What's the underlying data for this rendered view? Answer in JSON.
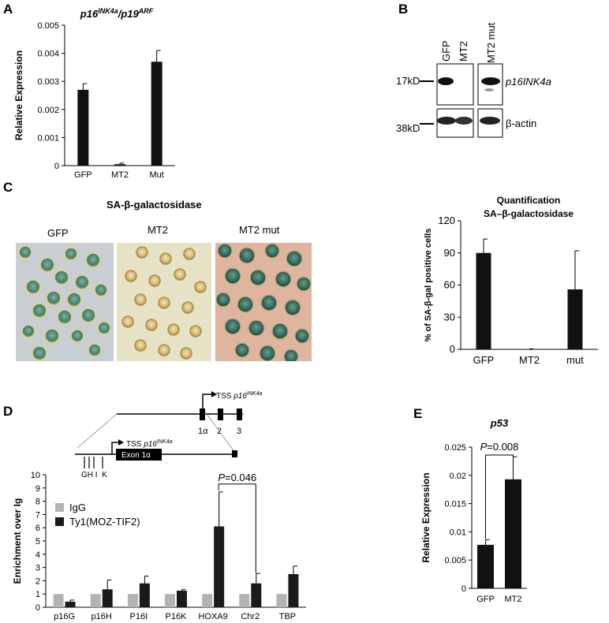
{
  "panel_letters": {
    "a": "A",
    "b": "B",
    "c": "C",
    "d": "D",
    "e": "E"
  },
  "blot": {
    "lanes": [
      "GFP",
      "MT2",
      "MT2 mut"
    ],
    "markers": [
      "17kD",
      "38kD"
    ],
    "bands": [
      "p16INK4a",
      "β-actin"
    ]
  },
  "micrographs": {
    "title": "SA-β-galactosidase",
    "labels": [
      "GFP",
      "MT2",
      "MT2 mut"
    ]
  },
  "schematic": {
    "tss_top": "TSS ",
    "tss_top_gene": "p16",
    "tss_top_sup": "INK4a",
    "tss_bottom": "TSS ",
    "tss_bottom_gene": "p16",
    "tss_bottom_sup": "INK4a",
    "exon": "Exon 1α",
    "exon_labels": [
      "1α",
      "2",
      "3"
    ],
    "probes": "GH I  K"
  },
  "chart_data": [
    {
      "id": "A",
      "type": "bar",
      "title_main": "p16",
      "title_sup1": "INK4a",
      "title_mid": "/p19",
      "title_sup2": "ARF",
      "ylabel": "Relative Expression",
      "categories": [
        "GFP",
        "MT2",
        "Mut"
      ],
      "values": [
        0.0027,
        5e-05,
        0.0037
      ],
      "errors": [
        0.00022,
        4e-05,
        0.0004
      ],
      "ylim": [
        0,
        0.005
      ],
      "yticks": [
        "0",
        "0.001",
        "0.002",
        "0.003",
        "0.004",
        "0.005"
      ],
      "ytick_values": [
        0,
        0.001,
        0.002,
        0.003,
        0.004,
        0.005
      ]
    },
    {
      "id": "C",
      "type": "bar",
      "title": "Quantification",
      "subtitle": "SA–β-galactosidase",
      "ylabel": "% of SA-β-gal positive cells",
      "categories": [
        "GFP",
        "MT2",
        "mut"
      ],
      "values": [
        90,
        0.3,
        56
      ],
      "errors": [
        13,
        0.2,
        36
      ],
      "ylim": [
        0,
        120
      ],
      "yticks": [
        "0",
        "30",
        "60",
        "90",
        "120"
      ],
      "ytick_values": [
        0,
        30,
        60,
        90,
        120
      ]
    },
    {
      "id": "D",
      "type": "bar",
      "ylabel": "Enrichment over Ig",
      "categories": [
        "p16G",
        "p16H",
        "P16I",
        "P16K",
        "HOXA9",
        "Chr2",
        "TBP"
      ],
      "series": [
        {
          "name": "IgG",
          "values": [
            1,
            1,
            1,
            1,
            1,
            1,
            1
          ],
          "errors": [
            0,
            0,
            0,
            0,
            0,
            0,
            0
          ],
          "color": "#b3b3b3"
        },
        {
          "name": "Ty1(MOZ-TIF2)",
          "values": [
            0.42,
            1.35,
            1.8,
            1.25,
            6.1,
            1.8,
            2.5
          ],
          "errors": [
            0.12,
            0.7,
            0.55,
            0.08,
            2.6,
            0.75,
            0.6
          ],
          "color": "#1a1a1a"
        }
      ],
      "ylim": [
        0,
        10
      ],
      "yticks": [
        "0",
        "1",
        "2",
        "3",
        "4",
        "5",
        "6",
        "7",
        "8",
        "9",
        "10"
      ],
      "ytick_values": [
        0,
        1,
        2,
        3,
        4,
        5,
        6,
        7,
        8,
        9,
        10
      ],
      "annotation": {
        "p_label": "P",
        "p_value": "=0.046"
      }
    },
    {
      "id": "E",
      "type": "bar",
      "title": "p53",
      "ylabel": "Relative Expression",
      "categories": [
        "GFP",
        "MT2"
      ],
      "values": [
        0.0077,
        0.0193
      ],
      "errors": [
        0.0009,
        0.004
      ],
      "ylim": [
        0,
        0.025
      ],
      "yticks": [
        "0",
        "0.005",
        "0.01",
        "0.015",
        "0.02",
        "0.025"
      ],
      "ytick_values": [
        0,
        0.005,
        0.01,
        0.015,
        0.02,
        0.025
      ],
      "annotation": {
        "p_label": "P",
        "p_value": "=0.008"
      }
    }
  ]
}
